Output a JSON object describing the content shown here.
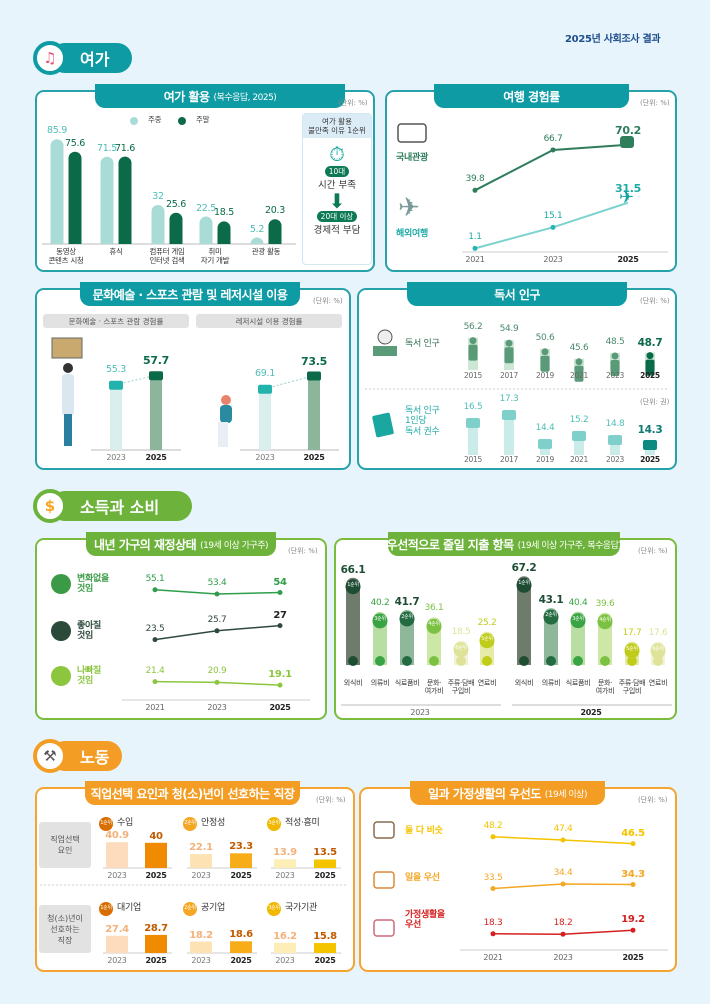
{
  "header": {
    "report_title": "2025년 사회조사 결과"
  },
  "sections": {
    "leisure": "여가",
    "income": "소득과 소비",
    "labor": "노동"
  },
  "colors": {
    "teal": "#0e9ba4",
    "green": "#6db33b",
    "orange": "#f39d25"
  },
  "chart_data": [
    {
      "id": "leisure_use",
      "type": "bar",
      "title": "여가 활용",
      "subtitle": "(복수응답, 2025)",
      "unit": "(단위: %)",
      "categories": [
        "동영상\n콘텐츠 시청",
        "휴식",
        "컴퓨터 게임\n인터넷 검색",
        "취미\n자기 개발",
        "관광 활동"
      ],
      "series": [
        {
          "name": "주중",
          "values": [
            85.9,
            71.5,
            32.0,
            22.5,
            5.2
          ],
          "color": "#a9dcd6"
        },
        {
          "name": "주말",
          "values": [
            75.6,
            71.6,
            25.6,
            18.5,
            20.3
          ],
          "color": "#0b6a47"
        }
      ],
      "side_box": {
        "title": "여가 활용\n불만족 이유 1순위",
        "items": [
          {
            "icon": "stopwatch-icon",
            "badge": "10대",
            "text": "시간 부족"
          },
          {
            "icon": "won-arrow-icon",
            "badge": "20대 이상",
            "text": "경제적 부담"
          }
        ]
      }
    },
    {
      "id": "travel",
      "type": "line",
      "title": "여행 경험률",
      "unit": "(단위: %)",
      "x": [
        "2021",
        "2023",
        "2025"
      ],
      "series": [
        {
          "name": "국내관광",
          "values": [
            39.8,
            66.7,
            70.2
          ],
          "color": "#2e7d5b",
          "icon": "bus-icon"
        },
        {
          "name": "해외여행",
          "values": [
            1.1,
            15.1,
            31.5
          ],
          "color": "#7fd3cf",
          "icon": "airplane-icon"
        }
      ]
    },
    {
      "id": "culture_leisure",
      "type": "bar",
      "title": "문화예술 · 스포츠 관람 및 레저시설 이용",
      "unit": "(단위: %)",
      "groups": [
        {
          "label": "문화예술 · 스포츠 관람 경험률",
          "categories": [
            "2023",
            "2025"
          ],
          "values": [
            55.3,
            57.7
          ]
        },
        {
          "label": "레저시설 이용 경험률",
          "categories": [
            "2023",
            "2025"
          ],
          "values": [
            69.1,
            73.5
          ]
        }
      ]
    },
    {
      "id": "reading",
      "type": "bar",
      "title": "독서 인구",
      "panels": [
        {
          "label": "독서 인구",
          "unit": "(단위: %)",
          "categories": [
            "2015",
            "2017",
            "2019",
            "2021",
            "2023",
            "2025"
          ],
          "values": [
            56.2,
            54.9,
            50.6,
            45.6,
            48.5,
            48.7
          ]
        },
        {
          "label": "독서 인구\n1인당\n독서 권수",
          "unit": "(단위: 권)",
          "categories": [
            "2015",
            "2017",
            "2019",
            "2021",
            "2023",
            "2025"
          ],
          "values": [
            16.5,
            17.3,
            14.4,
            15.2,
            14.8,
            14.3
          ]
        }
      ]
    },
    {
      "id": "household_finance",
      "type": "line",
      "title": "내년 가구의 재정상태",
      "subtitle": "(19세 이상 가구주)",
      "unit": "(단위: %)",
      "x": [
        "2021",
        "2023",
        "2025"
      ],
      "series": [
        {
          "name": "변화없을\n것임",
          "values": [
            55.1,
            53.4,
            54.0
          ],
          "color": "#2e9e4a",
          "icon": "raised-hand-icon"
        },
        {
          "name": "좋아질\n것임",
          "values": [
            23.5,
            25.7,
            27.0
          ],
          "color": "#2f4a3c",
          "icon": "thumbs-up-icon"
        },
        {
          "name": "나빠질\n것임",
          "values": [
            21.4,
            20.9,
            19.1
          ],
          "color": "#8cc63f",
          "icon": "thumbs-down-icon"
        }
      ]
    },
    {
      "id": "spending_cut",
      "type": "bar",
      "title": "우선적으로 줄일 지출 항목",
      "subtitle": "(19세 이상 가구주, 복수응답)",
      "unit": "(단위: %)",
      "categories": [
        "외식비",
        "의류비",
        "식료품비",
        "문화·\n여가비",
        "주류·담배\n구입비",
        "연료비"
      ],
      "groups": [
        {
          "year": "2023",
          "values": [
            66.1,
            40.2,
            41.7,
            36.1,
            18.5,
            25.2
          ],
          "ranks": [
            "1순위",
            "3순위",
            "2순위",
            "4순위",
            "6순위",
            "5순위"
          ]
        },
        {
          "year": "2025",
          "values": [
            67.2,
            43.1,
            40.4,
            39.6,
            17.7,
            17.6
          ],
          "ranks": [
            "1순위",
            "2순위",
            "3순위",
            "4순위",
            "5순위",
            "6순위"
          ]
        }
      ]
    },
    {
      "id": "job",
      "type": "bar",
      "title": "직업선택 요인과 청(소)년이 선호하는 직장",
      "unit": "(단위: %)",
      "rows": [
        {
          "label": "직업선택\n요인",
          "items": [
            {
              "rank": "1순위",
              "name": "수입",
              "categories": [
                "2023",
                "2025"
              ],
              "values": [
                40.9,
                40.0
              ]
            },
            {
              "rank": "2순위",
              "name": "안정성",
              "categories": [
                "2023",
                "2025"
              ],
              "values": [
                22.1,
                23.3
              ]
            },
            {
              "rank": "3순위",
              "name": "적성·흥미",
              "categories": [
                "2023",
                "2025"
              ],
              "values": [
                13.9,
                13.5
              ]
            }
          ]
        },
        {
          "label": "청(소)년이\n선호하는\n직장",
          "items": [
            {
              "rank": "1순위",
              "name": "대기업",
              "categories": [
                "2023",
                "2025"
              ],
              "values": [
                27.4,
                28.7
              ]
            },
            {
              "rank": "2순위",
              "name": "공기업",
              "categories": [
                "2023",
                "2025"
              ],
              "values": [
                18.2,
                18.6
              ]
            },
            {
              "rank": "3순위",
              "name": "국가기관",
              "categories": [
                "2023",
                "2025"
              ],
              "values": [
                16.2,
                15.8
              ]
            }
          ]
        }
      ]
    },
    {
      "id": "work_life",
      "type": "line",
      "title": "일과 가정생활의 우선도",
      "subtitle": "(19세 이상)",
      "unit": "(단위: %)",
      "x": [
        "2021",
        "2023",
        "2025"
      ],
      "series": [
        {
          "name": "둘 다 비슷",
          "values": [
            48.2,
            47.4,
            46.5
          ],
          "color": "#f5c400",
          "icon": "scale-icon"
        },
        {
          "name": "일을 우선",
          "values": [
            33.5,
            34.4,
            34.3
          ],
          "color": "#f5a623",
          "icon": "briefcase-hand-icon"
        },
        {
          "name": "가정생활을\n우선",
          "values": [
            18.3,
            18.2,
            19.2
          ],
          "color": "#d62020",
          "icon": "family-icon"
        }
      ]
    }
  ]
}
